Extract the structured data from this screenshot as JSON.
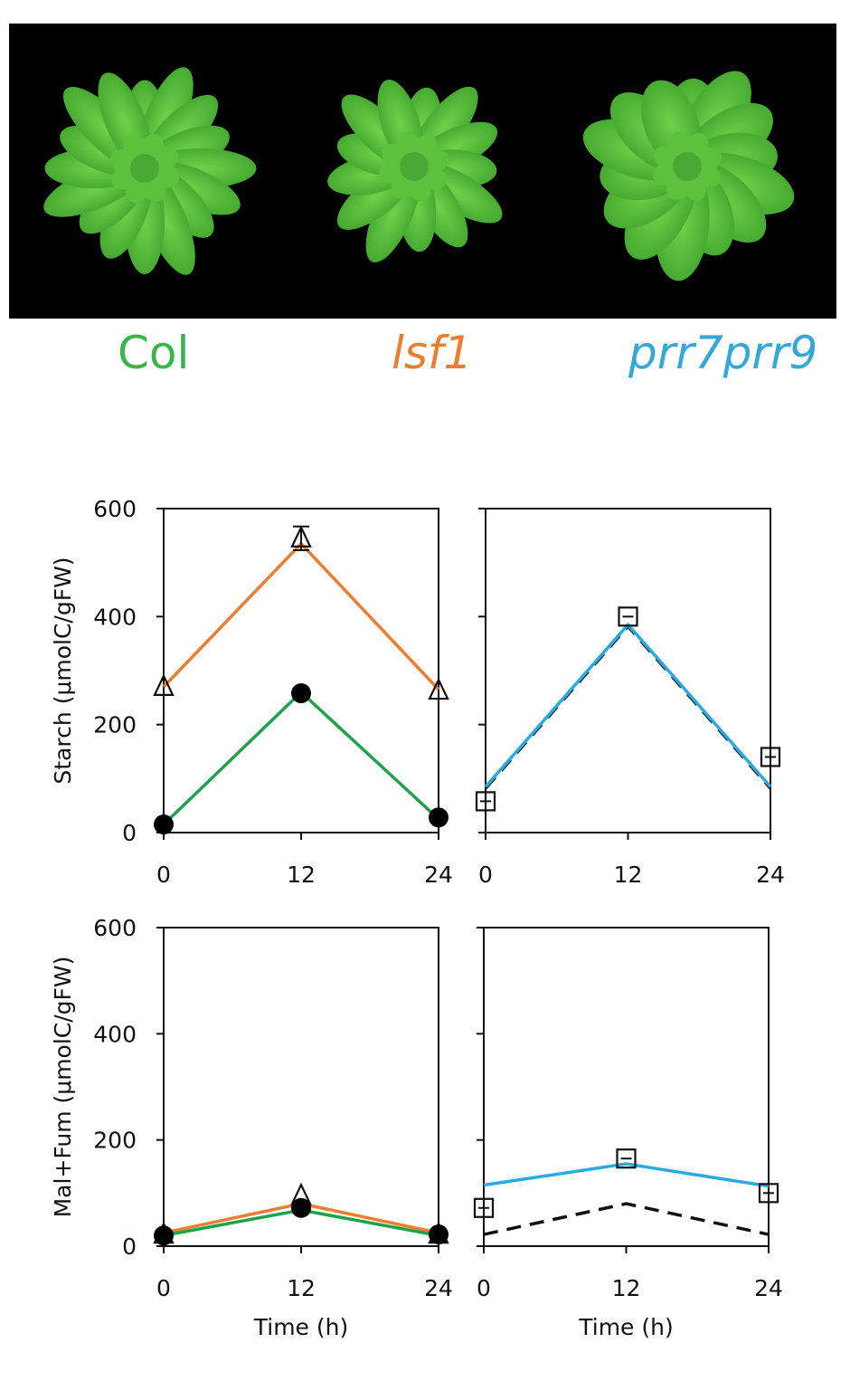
{
  "photo": {
    "description_icon": "rosette-plants-photo"
  },
  "genotypes": [
    {
      "label": "Col",
      "color": "#39b54a"
    },
    {
      "label": "lsf1",
      "color": "#ed7d31"
    },
    {
      "label": "prr7prr9",
      "color": "#35a9d6"
    }
  ],
  "chart_data": [
    {
      "type": "line",
      "panel": "top-left",
      "title": "",
      "xlabel": "",
      "ylabel": "Starch (μmolC/gFW)",
      "xlim": [
        0,
        24
      ],
      "ylim": [
        0,
        600
      ],
      "xticks": [
        "0",
        "12",
        "24"
      ],
      "yticks": [
        "0",
        "200",
        "400",
        "600"
      ],
      "series": [
        {
          "line": [
            [
              0,
              270
            ],
            [
              12,
              535
            ],
            [
              24,
              265
            ]
          ],
          "color": "#ed7d31",
          "style": "solid",
          "marker": "triangle",
          "points": [
            [
              0,
              270
            ],
            [
              12,
              545
            ],
            [
              24,
              263
            ]
          ],
          "err": [
            0,
            22,
            0
          ]
        },
        {
          "line": [
            [
              0,
              15
            ],
            [
              12,
              260
            ],
            [
              24,
              25
            ]
          ],
          "color": "#1fa34a",
          "style": "solid",
          "marker": "circle",
          "points": [
            [
              0,
              15
            ],
            [
              12,
              258
            ],
            [
              24,
              28
            ]
          ],
          "err": [
            0,
            0,
            0
          ]
        }
      ]
    },
    {
      "type": "line",
      "panel": "top-right",
      "title": "",
      "xlabel": "",
      "ylabel": "",
      "xlim": [
        0,
        24
      ],
      "ylim": [
        0,
        600
      ],
      "xticks": [
        "0",
        "12",
        "24"
      ],
      "yticks": [],
      "series": [
        {
          "line": [
            [
              0,
              82
            ],
            [
              12,
              382
            ],
            [
              24,
              82
            ]
          ],
          "color": "#222222",
          "style": "dashed"
        },
        {
          "line": [
            [
              0,
              85
            ],
            [
              12,
              385
            ],
            [
              24,
              85
            ]
          ],
          "color": "#29abe2",
          "style": "solid",
          "marker": "square",
          "points": [
            [
              0,
              58
            ],
            [
              12,
              400
            ],
            [
              24,
              140
            ]
          ],
          "err": [
            0,
            0,
            0
          ]
        }
      ]
    },
    {
      "type": "line",
      "panel": "bottom-left",
      "title": "",
      "xlabel": "Time (h)",
      "ylabel": "Mal+Fum (μmolC/gFW)",
      "xlim": [
        0,
        24
      ],
      "ylim": [
        0,
        600
      ],
      "xticks": [
        "0",
        "12",
        "24"
      ],
      "yticks": [
        "0",
        "200",
        "400",
        "600"
      ],
      "series": [
        {
          "line": [
            [
              0,
              25
            ],
            [
              12,
              80
            ],
            [
              24,
              25
            ]
          ],
          "color": "#ed7d31",
          "style": "solid",
          "marker": "triangle",
          "points": [
            [
              0,
              22
            ],
            [
              12,
              95
            ],
            [
              24,
              22
            ]
          ],
          "err": [
            0,
            0,
            0
          ]
        },
        {
          "line": [
            [
              0,
              20
            ],
            [
              12,
              68
            ],
            [
              24,
              20
            ]
          ],
          "color": "#1fa34a",
          "style": "solid",
          "marker": "circle",
          "points": [
            [
              0,
              20
            ],
            [
              12,
              72
            ],
            [
              24,
              22
            ]
          ],
          "err": [
            0,
            0,
            0
          ]
        }
      ]
    },
    {
      "type": "line",
      "panel": "bottom-right",
      "title": "",
      "xlabel": "Time (h)",
      "ylabel": "",
      "xlim": [
        0,
        24
      ],
      "ylim": [
        0,
        600
      ],
      "xticks": [
        "0",
        "12",
        "24"
      ],
      "yticks": [],
      "series": [
        {
          "line": [
            [
              0,
              22
            ],
            [
              12,
              80
            ],
            [
              24,
              22
            ]
          ],
          "color": "#111111",
          "style": "dashed"
        },
        {
          "line": [
            [
              0,
              115
            ],
            [
              12,
              155
            ],
            [
              24,
              113
            ]
          ],
          "color": "#29abe2",
          "style": "solid",
          "marker": "square",
          "points": [
            [
              0,
              72
            ],
            [
              12,
              165
            ],
            [
              24,
              100
            ]
          ],
          "err": [
            0,
            0,
            0
          ]
        }
      ]
    }
  ]
}
